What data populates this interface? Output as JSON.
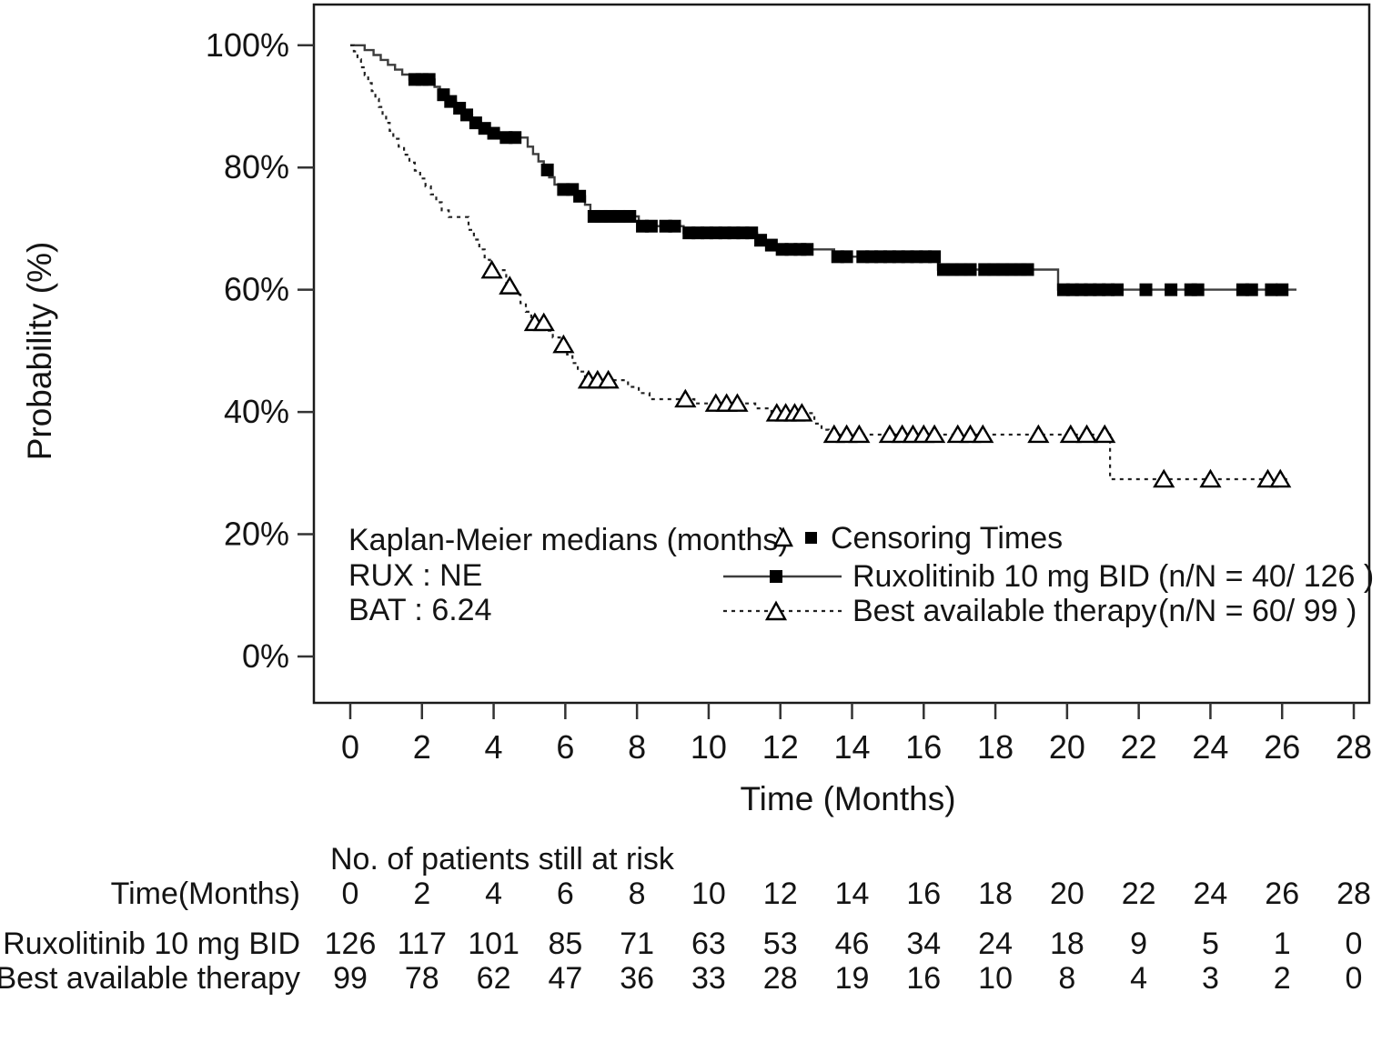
{
  "figure": {
    "y_axis": {
      "label": "Probability (%)",
      "ticks": [
        "100%",
        "80%",
        "60%",
        "40%",
        "20%",
        "0%"
      ],
      "tick_values": [
        100,
        80,
        60,
        40,
        20,
        0
      ]
    },
    "x_axis": {
      "label": "Time (Months)",
      "ticks": [
        0,
        2,
        4,
        6,
        8,
        10,
        12,
        14,
        16,
        18,
        20,
        22,
        24,
        26,
        28
      ]
    },
    "legend": {
      "medians_title": "Kaplan-Meier medians (months)",
      "rux_median": "RUX : NE",
      "bat_median": "BAT : 6.24",
      "censoring_label": "Censoring Times",
      "series1_label": "Ruxolitinib 10 mg BID",
      "series1_nN": "(n/N = 40/ 126 )",
      "series2_label": "Best available therapy",
      "series2_nN": "(n/N = 60/ 99 )"
    },
    "risk_table": {
      "title": "No. of patients still at risk",
      "row_header": "Time(Months)",
      "times": [
        0,
        2,
        4,
        6,
        8,
        10,
        12,
        14,
        16,
        18,
        20,
        22,
        24,
        26,
        28
      ],
      "rows": [
        {
          "label": "Ruxolitinib 10 mg BID",
          "values": [
            126,
            117,
            101,
            85,
            71,
            63,
            53,
            46,
            34,
            24,
            18,
            9,
            5,
            1,
            0
          ]
        },
        {
          "label": "Best available therapy",
          "values": [
            99,
            78,
            62,
            47,
            36,
            33,
            28,
            19,
            16,
            10,
            8,
            4,
            3,
            2,
            0
          ]
        }
      ]
    }
  },
  "chart_data": {
    "type": "line",
    "subtype": "kaplan-meier-step",
    "title": "",
    "xlabel": "Time (Months)",
    "ylabel": "Probability (%)",
    "xlim": [
      0,
      28
    ],
    "ylim": [
      0,
      100
    ],
    "xticks": [
      0,
      2,
      4,
      6,
      8,
      10,
      12,
      14,
      16,
      18,
      20,
      22,
      24,
      26,
      28
    ],
    "yticks": [
      0,
      20,
      40,
      60,
      80,
      100
    ],
    "grid": false,
    "legend_position": "inside-lower-left",
    "series": [
      {
        "name": "Ruxolitinib 10 mg BID",
        "median_months": "NE",
        "n_events": 40,
        "n_total": 126,
        "line_style": "solid",
        "marker": "filled-square",
        "color": "#3d3d3d",
        "steps": [
          [
            0,
            100
          ],
          [
            0.4,
            99.2
          ],
          [
            0.65,
            98.4
          ],
          [
            0.85,
            97.6
          ],
          [
            1.05,
            96.8
          ],
          [
            1.25,
            96.0
          ],
          [
            1.45,
            95.2
          ],
          [
            1.65,
            94.4
          ],
          [
            2.35,
            93.2
          ],
          [
            2.5,
            91.9
          ],
          [
            2.7,
            90.8
          ],
          [
            2.95,
            89.7
          ],
          [
            3.15,
            88.6
          ],
          [
            3.4,
            87.3
          ],
          [
            3.65,
            86.4
          ],
          [
            3.9,
            85.6
          ],
          [
            4.2,
            84.9
          ],
          [
            4.95,
            83.4
          ],
          [
            5.1,
            82.2
          ],
          [
            5.25,
            81.0
          ],
          [
            5.4,
            79.6
          ],
          [
            5.55,
            78.4
          ],
          [
            5.7,
            77.2
          ],
          [
            5.85,
            76.4
          ],
          [
            6.3,
            75.3
          ],
          [
            6.55,
            73.9
          ],
          [
            6.7,
            72.0
          ],
          [
            8.05,
            70.4
          ],
          [
            9.3,
            69.3
          ],
          [
            11.35,
            68.1
          ],
          [
            11.65,
            67.3
          ],
          [
            11.95,
            66.6
          ],
          [
            13.5,
            65.4
          ],
          [
            16.4,
            63.3
          ],
          [
            19.75,
            60.0
          ],
          [
            26.4,
            60.0
          ]
        ],
        "censors": [
          [
            1.8,
            94.4
          ],
          [
            2.0,
            94.4
          ],
          [
            2.2,
            94.4
          ],
          [
            2.6,
            91.9
          ],
          [
            2.8,
            90.8
          ],
          [
            3.05,
            89.7
          ],
          [
            3.25,
            88.6
          ],
          [
            3.5,
            87.3
          ],
          [
            3.75,
            86.4
          ],
          [
            4.0,
            85.6
          ],
          [
            4.35,
            84.9
          ],
          [
            4.6,
            84.9
          ],
          [
            5.5,
            79.6
          ],
          [
            5.95,
            76.4
          ],
          [
            6.2,
            76.4
          ],
          [
            6.4,
            75.3
          ],
          [
            6.8,
            72.0
          ],
          [
            7.0,
            72.0
          ],
          [
            7.25,
            72.0
          ],
          [
            7.5,
            72.0
          ],
          [
            7.8,
            72.0
          ],
          [
            8.15,
            70.4
          ],
          [
            8.4,
            70.4
          ],
          [
            8.8,
            70.4
          ],
          [
            9.05,
            70.4
          ],
          [
            9.45,
            69.3
          ],
          [
            9.7,
            69.3
          ],
          [
            9.95,
            69.3
          ],
          [
            10.2,
            69.3
          ],
          [
            10.45,
            69.3
          ],
          [
            10.7,
            69.3
          ],
          [
            10.95,
            69.3
          ],
          [
            11.2,
            69.3
          ],
          [
            11.45,
            68.1
          ],
          [
            11.75,
            67.3
          ],
          [
            12.05,
            66.6
          ],
          [
            12.3,
            66.6
          ],
          [
            12.55,
            66.6
          ],
          [
            12.75,
            66.6
          ],
          [
            13.6,
            65.4
          ],
          [
            13.85,
            65.4
          ],
          [
            14.3,
            65.4
          ],
          [
            14.55,
            65.4
          ],
          [
            14.8,
            65.4
          ],
          [
            15.05,
            65.4
          ],
          [
            15.3,
            65.4
          ],
          [
            15.55,
            65.4
          ],
          [
            15.8,
            65.4
          ],
          [
            16.05,
            65.4
          ],
          [
            16.3,
            65.4
          ],
          [
            16.55,
            63.3
          ],
          [
            16.8,
            63.3
          ],
          [
            17.05,
            63.3
          ],
          [
            17.3,
            63.3
          ],
          [
            17.7,
            63.3
          ],
          [
            17.95,
            63.3
          ],
          [
            18.2,
            63.3
          ],
          [
            18.45,
            63.3
          ],
          [
            18.7,
            63.3
          ],
          [
            18.9,
            63.3
          ],
          [
            19.9,
            60.0
          ],
          [
            20.15,
            60.0
          ],
          [
            20.4,
            60.0
          ],
          [
            20.65,
            60.0
          ],
          [
            20.9,
            60.0
          ],
          [
            21.15,
            60.0
          ],
          [
            21.4,
            60.0
          ],
          [
            22.2,
            60.0
          ],
          [
            22.9,
            60.0
          ],
          [
            23.45,
            60.0
          ],
          [
            23.65,
            60.0
          ],
          [
            24.9,
            60.0
          ],
          [
            25.15,
            60.0
          ],
          [
            25.7,
            60.0
          ],
          [
            26.0,
            60.0
          ]
        ]
      },
      {
        "name": "Best available therapy",
        "median_months": "6.24",
        "n_events": 60,
        "n_total": 99,
        "line_style": "dashed",
        "marker": "open-triangle",
        "color": "#222222",
        "steps": [
          [
            0,
            100
          ],
          [
            0.1,
            99.0
          ],
          [
            0.2,
            97.7
          ],
          [
            0.3,
            96.4
          ],
          [
            0.4,
            95.1
          ],
          [
            0.5,
            93.8
          ],
          [
            0.6,
            92.5
          ],
          [
            0.7,
            91.2
          ],
          [
            0.8,
            89.9
          ],
          [
            0.9,
            88.6
          ],
          [
            1.0,
            87.3
          ],
          [
            1.1,
            86.0
          ],
          [
            1.2,
            84.7
          ],
          [
            1.35,
            83.4
          ],
          [
            1.5,
            82.1
          ],
          [
            1.65,
            80.8
          ],
          [
            1.8,
            79.5
          ],
          [
            1.95,
            78.2
          ],
          [
            2.1,
            76.9
          ],
          [
            2.25,
            75.6
          ],
          [
            2.4,
            74.3
          ],
          [
            2.55,
            73.0
          ],
          [
            2.75,
            71.9
          ],
          [
            3.3,
            69.8
          ],
          [
            3.45,
            68.2
          ],
          [
            3.6,
            66.6
          ],
          [
            3.75,
            64.9
          ],
          [
            3.9,
            63.2
          ],
          [
            4.35,
            60.6
          ],
          [
            4.6,
            59.2
          ],
          [
            4.75,
            57.8
          ],
          [
            4.9,
            56.4
          ],
          [
            5.05,
            54.6
          ],
          [
            5.5,
            53.3
          ],
          [
            5.65,
            52.2
          ],
          [
            5.85,
            51.0
          ],
          [
            6.05,
            49.4
          ],
          [
            6.2,
            48.0
          ],
          [
            6.35,
            46.6
          ],
          [
            6.55,
            45.2
          ],
          [
            7.75,
            44.1
          ],
          [
            8.05,
            43.1
          ],
          [
            8.35,
            42.1
          ],
          [
            9.6,
            41.4
          ],
          [
            11.3,
            40.6
          ],
          [
            11.75,
            39.8
          ],
          [
            12.95,
            38.1
          ],
          [
            13.15,
            37.1
          ],
          [
            13.35,
            36.3
          ],
          [
            21.2,
            29.0
          ],
          [
            26.2,
            29.0
          ]
        ],
        "censors": [
          [
            3.95,
            63.2
          ],
          [
            4.45,
            60.6
          ],
          [
            5.15,
            54.6
          ],
          [
            5.4,
            54.6
          ],
          [
            5.95,
            51.0
          ],
          [
            6.65,
            45.2
          ],
          [
            6.9,
            45.2
          ],
          [
            7.2,
            45.2
          ],
          [
            9.35,
            42.1
          ],
          [
            10.2,
            41.4
          ],
          [
            10.5,
            41.4
          ],
          [
            10.8,
            41.4
          ],
          [
            11.9,
            39.8
          ],
          [
            12.15,
            39.8
          ],
          [
            12.4,
            39.8
          ],
          [
            12.6,
            39.8
          ],
          [
            13.5,
            36.3
          ],
          [
            13.85,
            36.3
          ],
          [
            14.2,
            36.3
          ],
          [
            15.05,
            36.3
          ],
          [
            15.4,
            36.3
          ],
          [
            15.7,
            36.3
          ],
          [
            16.0,
            36.3
          ],
          [
            16.3,
            36.3
          ],
          [
            16.95,
            36.3
          ],
          [
            17.3,
            36.3
          ],
          [
            17.65,
            36.3
          ],
          [
            19.2,
            36.3
          ],
          [
            20.1,
            36.3
          ],
          [
            20.55,
            36.3
          ],
          [
            21.05,
            36.3
          ],
          [
            22.7,
            29.0
          ],
          [
            24.0,
            29.0
          ],
          [
            25.6,
            29.0
          ],
          [
            25.95,
            29.0
          ]
        ]
      }
    ]
  }
}
